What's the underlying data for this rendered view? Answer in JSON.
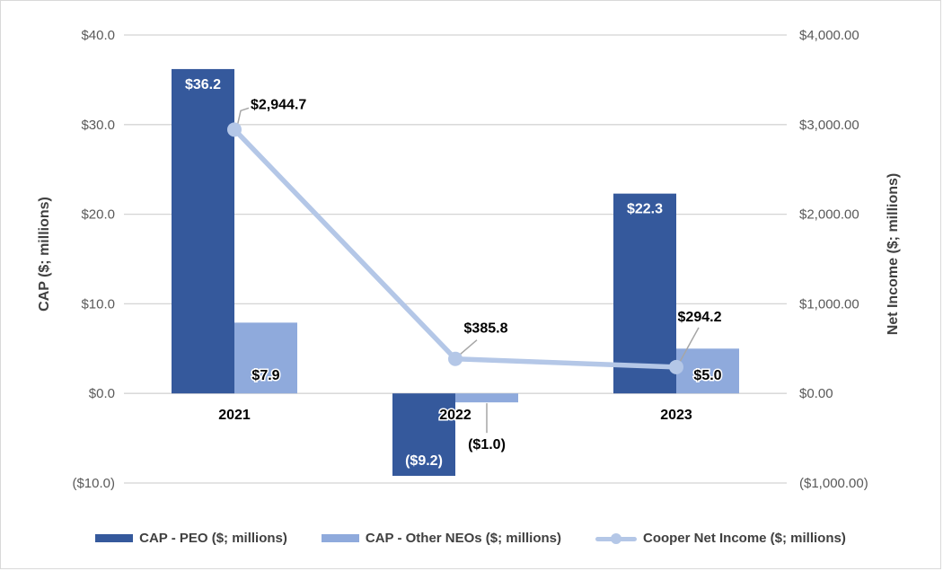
{
  "colors": {
    "background": "#ffffff",
    "frame_border": "#d9d9d9",
    "gridline": "#d4d4d4",
    "tick_text": "#595959",
    "axis_title_text": "#404040",
    "legend_text": "#404040",
    "leader_line": "#a6a6a6",
    "bar_dark": "#35599c",
    "bar_light": "#8faadc",
    "line": "#b4c7e7",
    "label_on_dark": "#ffffff",
    "label_on_light": "#000000"
  },
  "chart_data": {
    "type": "combo-bar-line",
    "title": "",
    "grid": true,
    "legend_position": "bottom",
    "categories": [
      "2021",
      "2022",
      "2023"
    ],
    "series": [
      {
        "name": "CAP - PEO ($; millions)",
        "type": "bar",
        "axis": "left",
        "color": "#35599c",
        "values": [
          36.2,
          -9.2,
          22.3
        ],
        "data_labels": [
          "$36.2",
          "($9.2)",
          "$22.3"
        ]
      },
      {
        "name": "CAP - Other NEOs ($; millions)",
        "type": "bar",
        "axis": "left",
        "color": "#8faadc",
        "values": [
          7.9,
          -1.0,
          5.0
        ],
        "data_labels": [
          "$7.9",
          "($1.0)",
          "$5.0"
        ]
      },
      {
        "name": "Cooper Net Income ($; millions)",
        "type": "line",
        "axis": "right",
        "color": "#b4c7e7",
        "marker": "circle",
        "values": [
          2944.7,
          385.8,
          294.2
        ],
        "data_labels": [
          "$2,944.7",
          "$385.8",
          "$294.2"
        ]
      }
    ],
    "left_axis": {
      "title": "CAP ($; millions)",
      "min": -10,
      "max": 40,
      "step": 10,
      "ticks": [
        {
          "v": 40,
          "label": "$40.0"
        },
        {
          "v": 30,
          "label": "$30.0"
        },
        {
          "v": 20,
          "label": "$20.0"
        },
        {
          "v": 10,
          "label": "$10.0"
        },
        {
          "v": 0,
          "label": "$0.0"
        },
        {
          "v": -10,
          "label": "($10.0)"
        }
      ]
    },
    "right_axis": {
      "title": "Net Income ($; millions)",
      "min": -1000,
      "max": 4000,
      "step": 1000,
      "ticks": [
        {
          "v": 4000,
          "label": "$4,000.00"
        },
        {
          "v": 3000,
          "label": "$3,000.00"
        },
        {
          "v": 2000,
          "label": "$2,000.00"
        },
        {
          "v": 1000,
          "label": "$1,000.00"
        },
        {
          "v": 0,
          "label": "$0.00"
        },
        {
          "v": -1000,
          "label": "($1,000.00)"
        }
      ]
    }
  }
}
